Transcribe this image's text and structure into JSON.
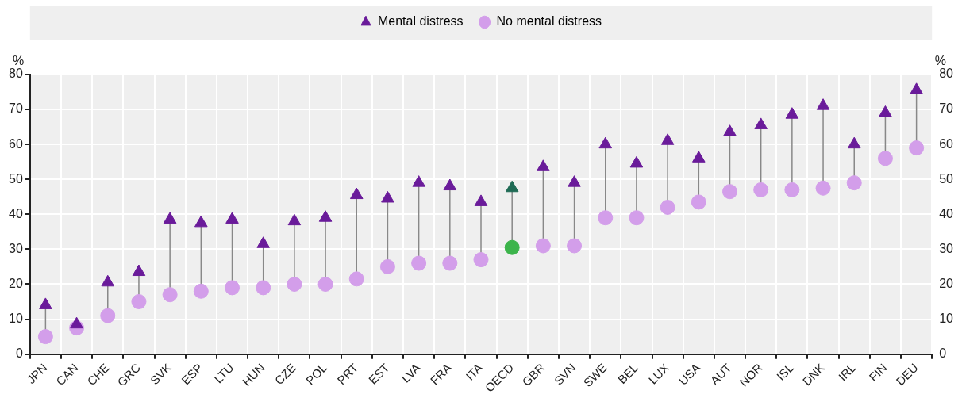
{
  "chart_data": {
    "type": "scatter",
    "ylabel": "%",
    "y2label": "%",
    "categories": [
      "JPN",
      "CAN",
      "CHE",
      "GRC",
      "SVK",
      "ESP",
      "LTU",
      "HUN",
      "CZE",
      "POL",
      "PRT",
      "EST",
      "LVA",
      "FRA",
      "ITA",
      "OECD",
      "GBR",
      "SVN",
      "SWE",
      "BEL",
      "LUX",
      "USA",
      "AUT",
      "NOR",
      "ISL",
      "DNK",
      "IRL",
      "FIN",
      "DEU"
    ],
    "series": [
      {
        "name": "Mental distress",
        "marker": "triangle",
        "color": "#6a1b9a",
        "colors": [
          "#6a1b9a",
          "#6a1b9a",
          "#6a1b9a",
          "#6a1b9a",
          "#6a1b9a",
          "#6a1b9a",
          "#6a1b9a",
          "#6a1b9a",
          "#6a1b9a",
          "#6a1b9a",
          "#6a1b9a",
          "#6a1b9a",
          "#6a1b9a",
          "#6a1b9a",
          "#6a1b9a",
          "#1f6b55",
          "#6a1b9a",
          "#6a1b9a",
          "#6a1b9a",
          "#6a1b9a",
          "#6a1b9a",
          "#6a1b9a",
          "#6a1b9a",
          "#6a1b9a",
          "#6a1b9a",
          "#6a1b9a",
          "#6a1b9a",
          "#6a1b9a",
          "#6a1b9a"
        ],
        "values": [
          14,
          8.5,
          20.5,
          23.5,
          38.5,
          37.5,
          38.5,
          31.5,
          38,
          39,
          45.5,
          44.5,
          49,
          48,
          43.5,
          47.5,
          53.5,
          49,
          60,
          54.5,
          61,
          56,
          63.5,
          65.5,
          68.5,
          71,
          60,
          69,
          75.5
        ]
      },
      {
        "name": "No mental distress",
        "marker": "circle",
        "color": "#d39eea",
        "colors": [
          "#d39eea",
          "#d39eea",
          "#d39eea",
          "#d39eea",
          "#d39eea",
          "#d39eea",
          "#d39eea",
          "#d39eea",
          "#d39eea",
          "#d39eea",
          "#d39eea",
          "#d39eea",
          "#d39eea",
          "#d39eea",
          "#d39eea",
          "#3cb44b",
          "#d39eea",
          "#d39eea",
          "#d39eea",
          "#d39eea",
          "#d39eea",
          "#d39eea",
          "#d39eea",
          "#d39eea",
          "#d39eea",
          "#d39eea",
          "#d39eea",
          "#d39eea",
          "#d39eea"
        ],
        "values": [
          5,
          7.5,
          11,
          15,
          17,
          18,
          19,
          19,
          20,
          20,
          21.5,
          25,
          26,
          26,
          27,
          30.5,
          31,
          31,
          39,
          39,
          42,
          43.5,
          46.5,
          47,
          47,
          47.5,
          49,
          56,
          59
        ]
      }
    ],
    "ylim": [
      0,
      80
    ],
    "yticks": [
      0,
      10,
      20,
      30,
      40,
      50,
      60,
      70,
      80
    ],
    "y2lim": [
      0,
      80
    ],
    "y2ticks": [
      0,
      10,
      20,
      30,
      40,
      50,
      60,
      70,
      80
    ],
    "grid": true,
    "legend": "top"
  }
}
